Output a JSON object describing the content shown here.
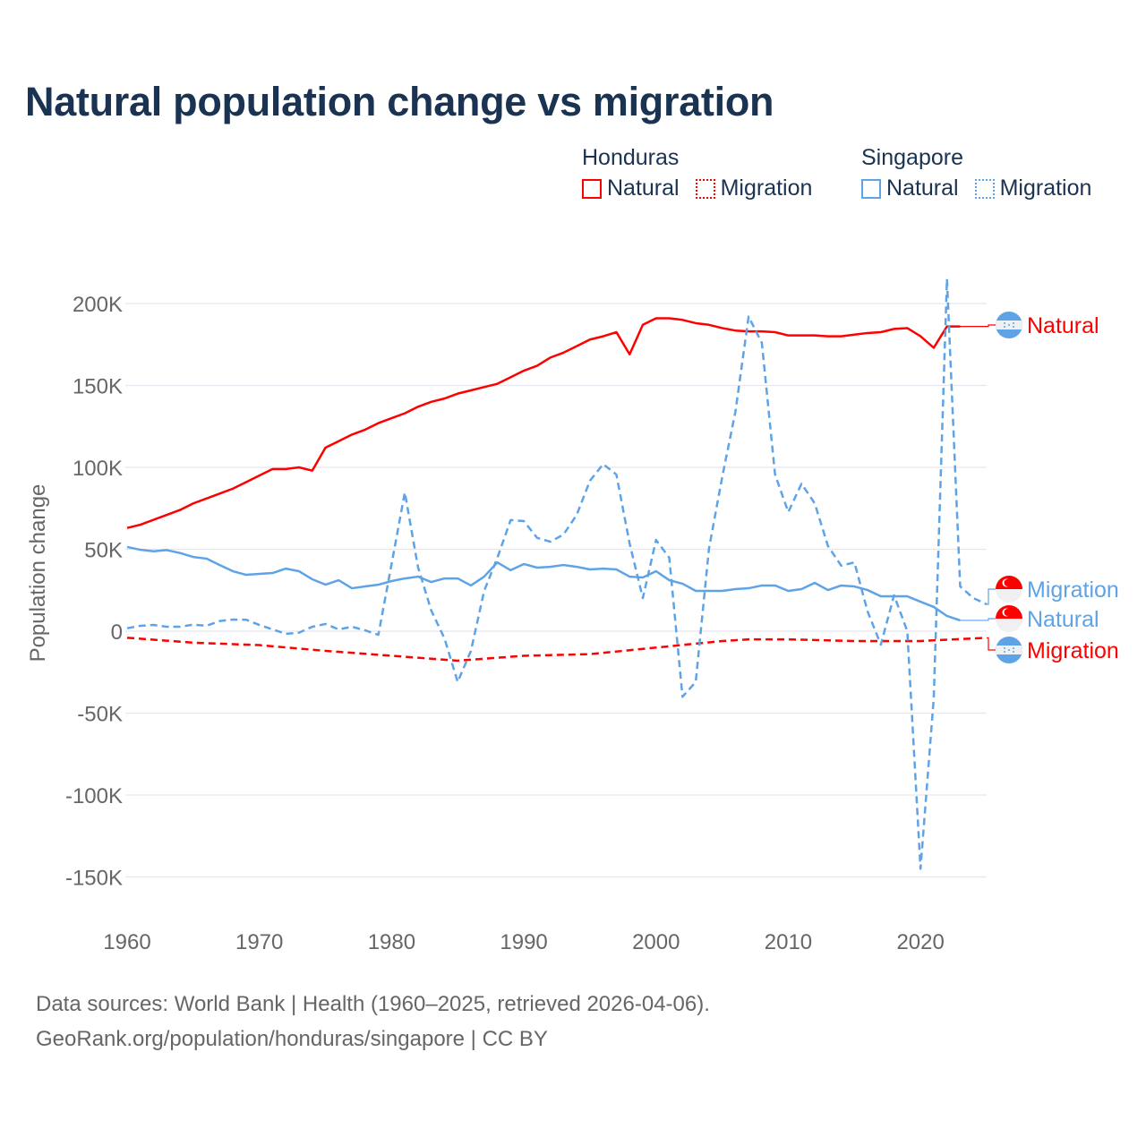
{
  "colors": {
    "honduras": "#ff0000",
    "singapore": "#5ea3e6",
    "title": "#1b3352",
    "grid": "#e6e6ee",
    "tick": "#666666"
  },
  "chart_data": {
    "type": "line",
    "title": "Natural population change vs migration",
    "ylabel": "Population change",
    "xlabel": "",
    "xlim": [
      1960,
      2025
    ],
    "ylim": [
      -150000,
      200000
    ],
    "grid": true,
    "legend_position": "top-right",
    "x_ticks": [
      1960,
      1970,
      1980,
      1990,
      2000,
      2010,
      2020
    ],
    "x_tick_labels": [
      "1960",
      "1970",
      "1980",
      "1990",
      "2000",
      "2010",
      "2020"
    ],
    "y_ticks": [
      200000,
      150000,
      100000,
      50000,
      0,
      -50000,
      -100000,
      -150000
    ],
    "y_tick_labels": [
      "200K",
      "150K",
      "100K",
      "50K",
      "0",
      "-50K",
      "-100K",
      "-150K"
    ],
    "legend": [
      {
        "group": "Honduras",
        "items": [
          {
            "label": "Natural",
            "style": "solid"
          },
          {
            "label": "Migration",
            "style": "dotted"
          }
        ]
      },
      {
        "group": "Singapore",
        "items": [
          {
            "label": "Natural",
            "style": "solid"
          },
          {
            "label": "Migration",
            "style": "dotted"
          }
        ]
      }
    ],
    "series": [
      {
        "name": "Honduras Natural",
        "country": "honduras",
        "dash": false,
        "start": 1960,
        "end_label": "Natural",
        "end_flag": "honduras",
        "values": [
          63,
          65,
          68,
          71,
          74,
          78,
          81,
          84,
          87,
          91,
          95,
          99,
          99,
          100,
          98,
          112,
          116,
          120,
          123,
          127,
          130,
          133,
          137,
          140,
          142,
          145,
          147,
          149,
          151,
          155,
          159,
          162,
          167,
          170,
          174,
          178,
          180,
          182.5,
          169,
          187,
          191,
          191,
          190,
          188,
          187,
          185,
          183.5,
          183,
          183,
          182.5,
          180.5,
          180.5,
          180.5,
          180,
          180,
          181,
          182,
          182.5,
          184.5,
          185,
          180,
          173,
          186,
          186
        ]
      },
      {
        "name": "Honduras Migration",
        "country": "honduras",
        "dash": true,
        "start": 1960,
        "end_label": "Migration",
        "end_flag": "honduras",
        "values": [
          -4,
          -4.6,
          -5.2,
          -5.8,
          -6.4,
          -7,
          -7.3,
          -7.6,
          -7.9,
          -8.2,
          -8.5,
          -9.2,
          -9.9,
          -10.6,
          -11.3,
          -12,
          -12.6,
          -13.2,
          -13.8,
          -14.4,
          -15,
          -15.6,
          -16.2,
          -16.8,
          -17.4,
          -18,
          -17.4,
          -16.8,
          -16.2,
          -15.6,
          -15,
          -14.8,
          -14.6,
          -14.4,
          -14.2,
          -14,
          -13.2,
          -12.4,
          -11.6,
          -10.8,
          -10,
          -9.2,
          -8.4,
          -7.6,
          -6.8,
          -6,
          -5.5,
          -5,
          -5,
          -5,
          -5,
          -5.2,
          -5.4,
          -5.6,
          -5.8,
          -6,
          -6,
          -6,
          -6,
          -6,
          -6,
          -5.6,
          -5.2,
          -4.8,
          -4.4,
          -4
        ]
      },
      {
        "name": "Singapore Natural",
        "country": "singapore",
        "dash": false,
        "start": 1960,
        "end_label": "Natural",
        "end_flag": "singapore",
        "values": [
          51.4,
          49.7,
          48.8,
          49.5,
          47.7,
          45.3,
          44.3,
          40.4,
          36.6,
          34.4,
          35,
          35.5,
          38.2,
          36.6,
          31.7,
          28.4,
          31.1,
          26.2,
          27.3,
          28.4,
          30.6,
          32.2,
          33.3,
          30,
          32.2,
          32.2,
          27.9,
          33.3,
          42,
          37.2,
          41,
          38.8,
          39.3,
          40.4,
          39.3,
          37.7,
          38.2,
          37.7,
          33.3,
          32.8,
          36.6,
          31.1,
          29,
          24.6,
          24.6,
          24.6,
          25.7,
          26.2,
          27.9,
          27.9,
          24.6,
          25.7,
          29.5,
          25.1,
          27.9,
          27.3,
          25.1,
          21.3,
          21.3,
          21.3,
          18,
          14.8,
          9.3,
          6.6
        ]
      },
      {
        "name": "Singapore Migration",
        "country": "singapore",
        "dash": true,
        "start": 1960,
        "end_label": "Migration",
        "end_flag": "singapore",
        "values": [
          1.8,
          3.3,
          3.8,
          2.7,
          2.7,
          4,
          3.3,
          6.2,
          7.1,
          7,
          3.8,
          1.1,
          -1.6,
          -0.9,
          2.7,
          4.4,
          1.1,
          2.7,
          0.5,
          -2.2,
          41,
          84.7,
          39,
          12.6,
          -4.4,
          -31,
          -12,
          24.6,
          44.8,
          67.8,
          67.2,
          57,
          54.6,
          59,
          71,
          91.8,
          102,
          95.6,
          53.5,
          20.2,
          55.7,
          44.8,
          -40,
          -31,
          50.3,
          94,
          133.9,
          192,
          176,
          95.6,
          72.7,
          90,
          78,
          52,
          40,
          42,
          12,
          -8.2,
          21.9,
          0,
          -145,
          -41,
          215,
          27.3,
          20.2,
          16.4
        ]
      }
    ],
    "value_unit": "thousands"
  },
  "footer": {
    "line1": "Data sources: World Bank | Health (1960–2025, retrieved 2026-04-06).",
    "line2": "GeoRank.org/population/honduras/singapore | CC BY"
  }
}
